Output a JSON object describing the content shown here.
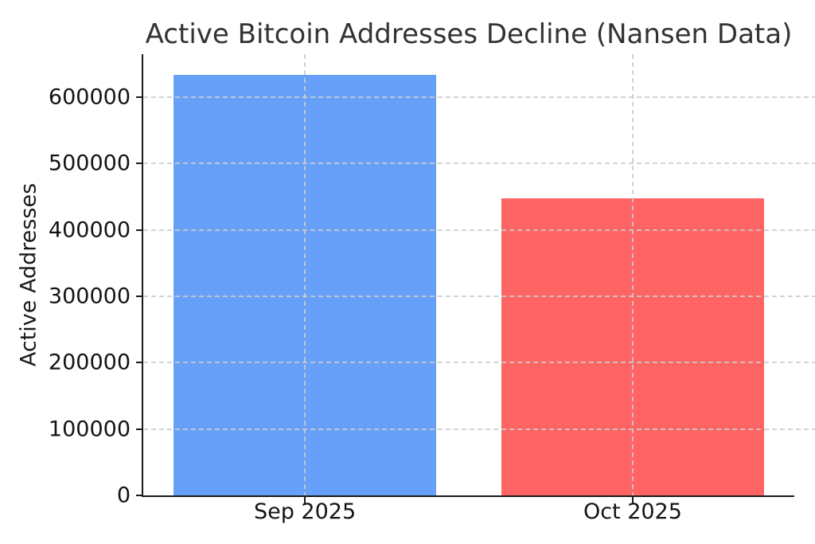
{
  "chart_data": {
    "type": "bar",
    "title": "Active Bitcoin Addresses Decline (Nansen Data)",
    "xlabel": "",
    "ylabel": "Active Addresses",
    "categories": [
      "Sep 2025",
      "Oct 2025"
    ],
    "values": [
      633000,
      447000
    ],
    "bar_colors": [
      "#67a0f8",
      "#ff6464"
    ],
    "yticks": [
      0,
      100000,
      200000,
      300000,
      400000,
      500000,
      600000
    ],
    "ytick_labels": [
      "0",
      "100000",
      "200000",
      "300000",
      "400000",
      "500000",
      "600000"
    ],
    "ylim": [
      0,
      664650
    ],
    "grid": true,
    "grid_style": "dashed",
    "grid_color": "#cccccc",
    "legend_position": "none",
    "background_color": "#ffffff",
    "text_color": "#333333"
  }
}
